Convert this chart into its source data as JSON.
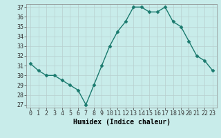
{
  "x": [
    0,
    1,
    2,
    3,
    4,
    5,
    6,
    7,
    8,
    9,
    10,
    11,
    12,
    13,
    14,
    15,
    16,
    17,
    18,
    19,
    20,
    21,
    22,
    23
  ],
  "y": [
    31.2,
    30.5,
    30.0,
    30.0,
    29.5,
    29.0,
    28.5,
    27.0,
    29.0,
    31.0,
    33.0,
    34.5,
    35.5,
    37.0,
    37.0,
    36.5,
    36.5,
    37.0,
    35.5,
    35.0,
    33.5,
    32.0,
    31.5,
    30.5
  ],
  "line_color": "#1a7a6e",
  "marker": "D",
  "marker_size": 2.5,
  "bg_color": "#c8ecea",
  "grid_color": "#b8cece",
  "xlabel": "Humidex (Indice chaleur)",
  "ylim": [
    27,
    37
  ],
  "xlim": [
    -0.5,
    23.5
  ],
  "yticks": [
    27,
    28,
    29,
    30,
    31,
    32,
    33,
    34,
    35,
    36,
    37
  ],
  "xticks": [
    0,
    1,
    2,
    3,
    4,
    5,
    6,
    7,
    8,
    9,
    10,
    11,
    12,
    13,
    14,
    15,
    16,
    17,
    18,
    19,
    20,
    21,
    22,
    23
  ],
  "tick_label_fontsize": 6,
  "xlabel_fontsize": 7,
  "line_width": 1.0
}
